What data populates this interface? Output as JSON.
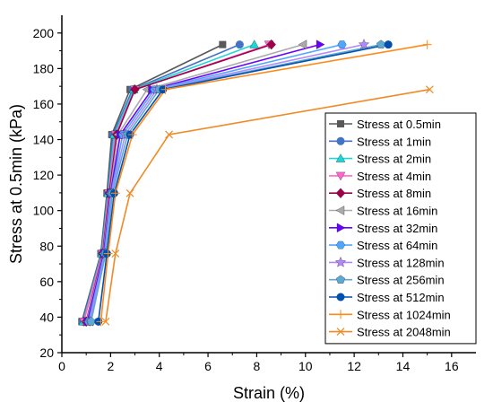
{
  "chart_data": {
    "type": "line",
    "title": "",
    "xlabel": "Strain (%)",
    "ylabel": "Stress at 0.5min (kPa)",
    "xlim": [
      0,
      17
    ],
    "ylim": [
      20,
      210
    ],
    "xticks": [
      0,
      2,
      4,
      6,
      8,
      10,
      12,
      14,
      16
    ],
    "yticks": [
      20,
      40,
      60,
      80,
      100,
      120,
      140,
      160,
      180,
      200
    ],
    "grid": false,
    "legend_position": "right",
    "y_levels": [
      37.5,
      75.8,
      109.8,
      142.8,
      168.2,
      193.5
    ],
    "series": [
      {
        "name": "Stress at 0.5min",
        "color": "#595959",
        "marker": "square",
        "x": [
          0.82,
          1.6,
          1.85,
          2.05,
          2.8,
          6.6
        ],
        "y": [
          37.5,
          75.8,
          109.8,
          142.8,
          168.2,
          193.5
        ]
      },
      {
        "name": "Stress at 1min",
        "color": "#4472C4",
        "marker": "circle",
        "x": [
          0.85,
          1.62,
          1.88,
          2.1,
          2.9,
          7.3
        ],
        "y": [
          37.5,
          75.8,
          109.8,
          142.8,
          168.2,
          193.5
        ]
      },
      {
        "name": "Stress at 2min",
        "color": "#1ad6d6",
        "marker": "triangle-up",
        "x": [
          0.88,
          1.64,
          1.9,
          2.15,
          2.95,
          7.9
        ],
        "y": [
          37.5,
          75.8,
          109.8,
          142.8,
          168.2,
          193.5
        ]
      },
      {
        "name": "Stress at 4min",
        "color": "#ff66cc",
        "marker": "triangle-down",
        "x": [
          0.9,
          1.66,
          1.92,
          2.2,
          3.0,
          8.5
        ],
        "y": [
          37.5,
          75.8,
          109.8,
          142.8,
          168.2,
          193.5
        ]
      },
      {
        "name": "Stress at 8min",
        "color": "#a0004a",
        "marker": "diamond",
        "x": [
          1.0,
          1.68,
          1.95,
          2.25,
          3.0,
          8.6
        ],
        "y": [
          37.5,
          75.8,
          109.8,
          142.8,
          168.2,
          193.5
        ]
      },
      {
        "name": "Stress at 16min",
        "color": "#aaaaaa",
        "marker": "triangle-left",
        "x": [
          1.02,
          1.7,
          1.98,
          2.3,
          3.5,
          9.9
        ],
        "y": [
          37.5,
          75.8,
          109.8,
          142.8,
          168.2,
          193.5
        ]
      },
      {
        "name": "Stress at 32min",
        "color": "#6a00ff",
        "marker": "triangle-right",
        "x": [
          1.05,
          1.72,
          2.0,
          2.4,
          3.7,
          10.6
        ],
        "y": [
          37.5,
          75.8,
          109.8,
          142.8,
          168.2,
          193.5
        ]
      },
      {
        "name": "Stress at 64min",
        "color": "#4da6ff",
        "marker": "hexagon",
        "x": [
          1.1,
          1.75,
          2.02,
          2.5,
          3.8,
          11.5
        ],
        "y": [
          37.5,
          75.8,
          109.8,
          142.8,
          168.2,
          193.5
        ]
      },
      {
        "name": "Stress at 128min",
        "color": "#b388ff",
        "marker": "star",
        "x": [
          1.15,
          1.78,
          2.05,
          2.6,
          3.9,
          12.4
        ],
        "y": [
          37.5,
          75.8,
          109.8,
          142.8,
          168.2,
          193.5
        ]
      },
      {
        "name": "Stress at 256min",
        "color": "#5fa8d3",
        "marker": "pentagon",
        "x": [
          1.2,
          1.8,
          2.08,
          2.7,
          4.0,
          13.1
        ],
        "y": [
          37.5,
          75.8,
          109.8,
          142.8,
          168.2,
          193.5
        ]
      },
      {
        "name": "Stress at 512min",
        "color": "#0050b0",
        "marker": "circle",
        "x": [
          1.5,
          1.85,
          2.15,
          2.8,
          4.15,
          13.4
        ],
        "y": [
          37.5,
          75.8,
          109.8,
          142.8,
          168.2,
          193.5
        ]
      },
      {
        "name": "Stress at 1024min",
        "color": "#ff8a1a",
        "marker": "plus",
        "x": [
          1.6,
          1.9,
          2.2,
          2.9,
          4.25,
          15.0
        ],
        "y": [
          37.5,
          75.8,
          109.8,
          142.8,
          168.2,
          193.5
        ]
      },
      {
        "name": "Stress at 2048min",
        "color": "#f08a24",
        "marker": "x",
        "x": [
          1.8,
          2.2,
          2.8,
          4.4,
          15.1
        ],
        "y": [
          37.5,
          75.8,
          109.8,
          142.8,
          168.2
        ]
      }
    ]
  }
}
